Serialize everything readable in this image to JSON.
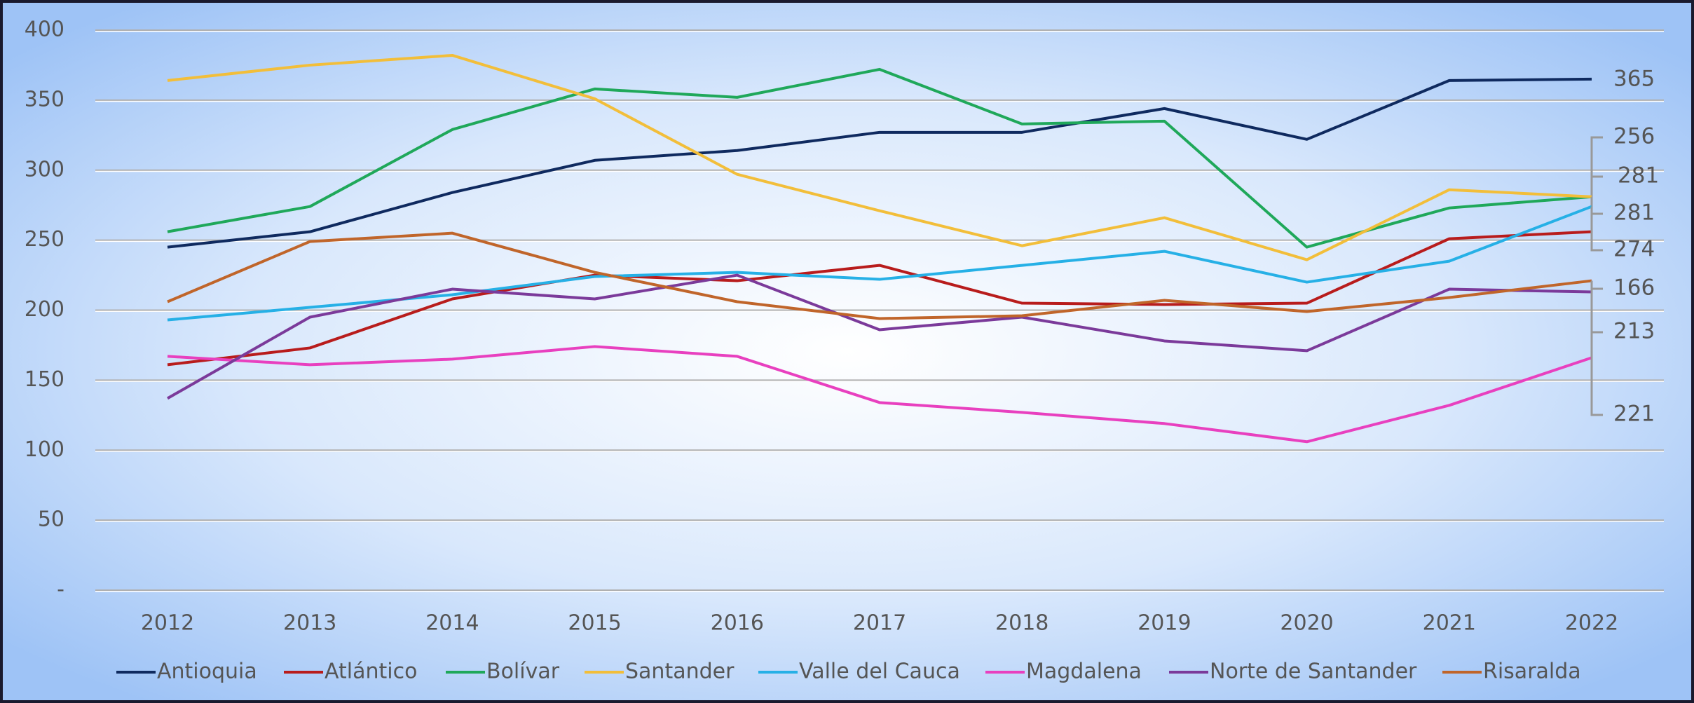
{
  "chart_data": {
    "type": "line",
    "x": [
      2012,
      2013,
      2014,
      2015,
      2016,
      2017,
      2018,
      2019,
      2020,
      2021,
      2022
    ],
    "xlim": [
      2011.86,
      2022.14
    ],
    "ylim": [
      0,
      400
    ],
    "yticks": [
      {
        "value": 0,
        "label": "-"
      },
      50,
      100,
      150,
      200,
      250,
      300,
      350,
      400
    ],
    "grid": true,
    "legend": "bottom",
    "series": [
      {
        "name": "Antioquia",
        "color": "#0f2a5f",
        "values": [
          245,
          256,
          284,
          307,
          314,
          327,
          327,
          344,
          322,
          364,
          365
        ]
      },
      {
        "name": "Atlántico",
        "color": "#b81c1c",
        "values": [
          161,
          173,
          208,
          225,
          221,
          232,
          205,
          204,
          205,
          251,
          256
        ]
      },
      {
        "name": "Bolívar",
        "color": "#1fa85a",
        "values": [
          256,
          274,
          329,
          358,
          352,
          372,
          333,
          335,
          245,
          273,
          281
        ]
      },
      {
        "name": "Santander",
        "color": "#f2be3a",
        "values": [
          364,
          375,
          382,
          351,
          297,
          271,
          246,
          266,
          236,
          286,
          281
        ]
      },
      {
        "name": "Valle del Cauca",
        "color": "#26b0e6",
        "values": [
          193,
          202,
          211,
          224,
          227,
          222,
          232,
          242,
          220,
          235,
          274
        ]
      },
      {
        "name": "Magdalena",
        "color": "#e840bf",
        "values": [
          167,
          161,
          165,
          174,
          167,
          134,
          127,
          119,
          106,
          132,
          166
        ]
      },
      {
        "name": "Norte de Santander",
        "color": "#7b3a9a",
        "values": [
          137,
          195,
          215,
          208,
          225,
          186,
          195,
          178,
          171,
          215,
          213
        ]
      },
      {
        "name": "Risaralda",
        "color": "#c0652a",
        "values": [
          206,
          249,
          255,
          227,
          206,
          194,
          196,
          207,
          199,
          209,
          221
        ]
      }
    ]
  }
}
